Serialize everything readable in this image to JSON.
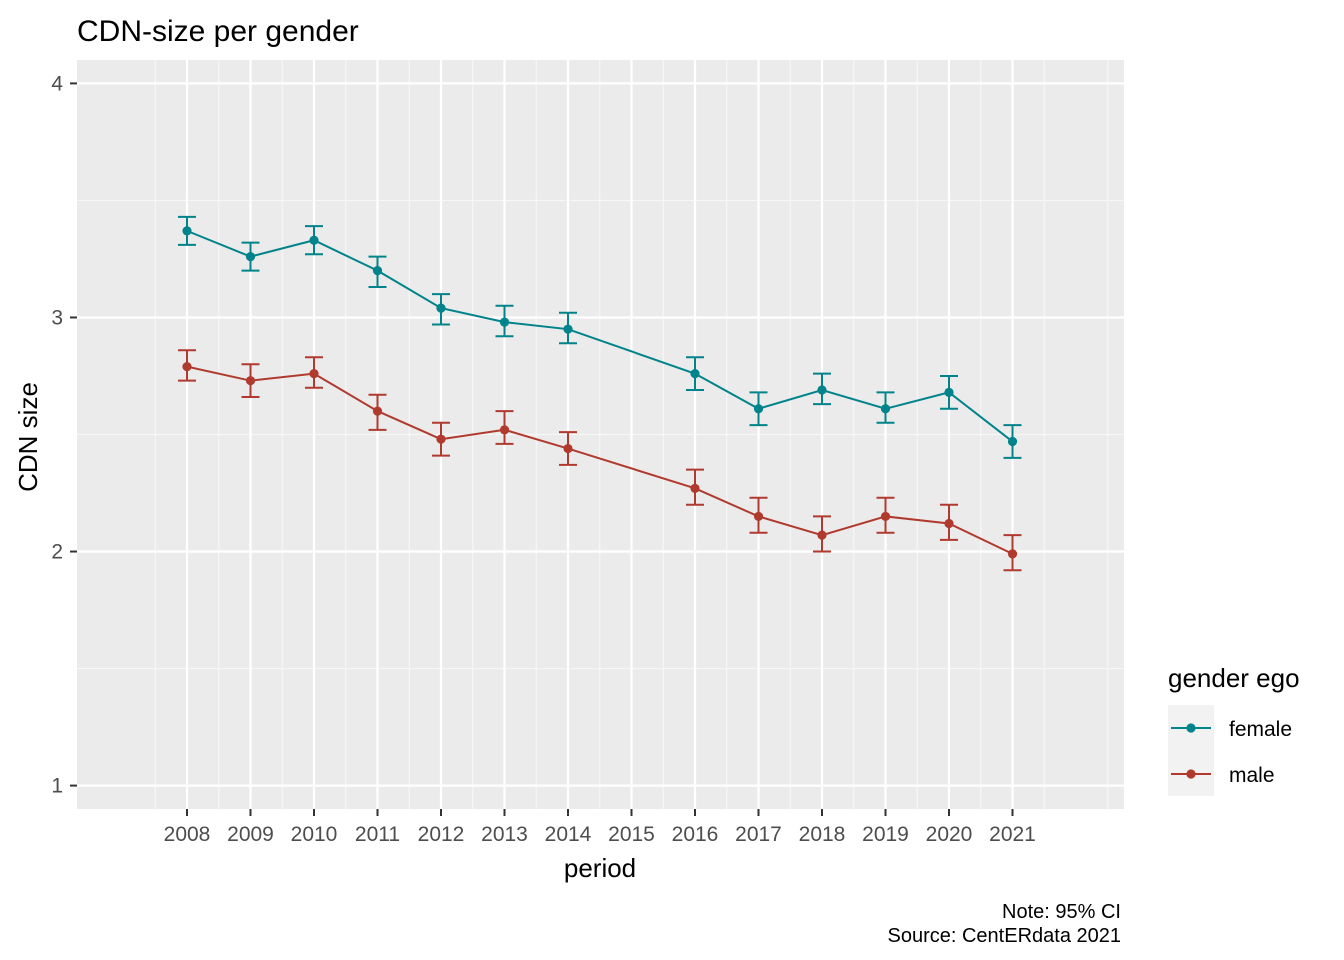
{
  "chart_data": {
    "type": "line",
    "title": "CDN-size per gender",
    "xlabel": "period",
    "ylabel": "CDN size",
    "x": [
      "2008",
      "2009",
      "2010",
      "2011",
      "2012",
      "2013",
      "2014",
      "2015",
      "2016",
      "2017",
      "2018",
      "2019",
      "2020",
      "2021"
    ],
    "ylim": [
      0.9,
      4.1
    ],
    "yticks": [
      "1",
      "2",
      "3",
      "4"
    ],
    "grid": true,
    "error_bars": "95% CI",
    "legend": {
      "title": "gender ego",
      "position": "right"
    },
    "series": [
      {
        "name": "female",
        "color": "#00838a",
        "points": [
          {
            "x": "2008",
            "y": 3.37,
            "lo": 3.31,
            "hi": 3.43
          },
          {
            "x": "2009",
            "y": 3.26,
            "lo": 3.2,
            "hi": 3.32
          },
          {
            "x": "2010",
            "y": 3.33,
            "lo": 3.27,
            "hi": 3.39
          },
          {
            "x": "2011",
            "y": 3.2,
            "lo": 3.13,
            "hi": 3.26
          },
          {
            "x": "2012",
            "y": 3.04,
            "lo": 2.97,
            "hi": 3.1
          },
          {
            "x": "2013",
            "y": 2.98,
            "lo": 2.92,
            "hi": 3.05
          },
          {
            "x": "2014",
            "y": 2.95,
            "lo": 2.89,
            "hi": 3.02
          },
          {
            "x": "2016",
            "y": 2.76,
            "lo": 2.69,
            "hi": 2.83
          },
          {
            "x": "2017",
            "y": 2.61,
            "lo": 2.54,
            "hi": 2.68
          },
          {
            "x": "2018",
            "y": 2.69,
            "lo": 2.63,
            "hi": 2.76
          },
          {
            "x": "2019",
            "y": 2.61,
            "lo": 2.55,
            "hi": 2.68
          },
          {
            "x": "2020",
            "y": 2.68,
            "lo": 2.61,
            "hi": 2.75
          },
          {
            "x": "2021",
            "y": 2.47,
            "lo": 2.4,
            "hi": 2.54
          }
        ]
      },
      {
        "name": "male",
        "color": "#b03a2e",
        "points": [
          {
            "x": "2008",
            "y": 2.79,
            "lo": 2.73,
            "hi": 2.86
          },
          {
            "x": "2009",
            "y": 2.73,
            "lo": 2.66,
            "hi": 2.8
          },
          {
            "x": "2010",
            "y": 2.76,
            "lo": 2.7,
            "hi": 2.83
          },
          {
            "x": "2011",
            "y": 2.6,
            "lo": 2.52,
            "hi": 2.67
          },
          {
            "x": "2012",
            "y": 2.48,
            "lo": 2.41,
            "hi": 2.55
          },
          {
            "x": "2013",
            "y": 2.52,
            "lo": 2.46,
            "hi": 2.6
          },
          {
            "x": "2014",
            "y": 2.44,
            "lo": 2.37,
            "hi": 2.51
          },
          {
            "x": "2016",
            "y": 2.27,
            "lo": 2.2,
            "hi": 2.35
          },
          {
            "x": "2017",
            "y": 2.15,
            "lo": 2.08,
            "hi": 2.23
          },
          {
            "x": "2018",
            "y": 2.07,
            "lo": 2.0,
            "hi": 2.15
          },
          {
            "x": "2019",
            "y": 2.15,
            "lo": 2.08,
            "hi": 2.23
          },
          {
            "x": "2020",
            "y": 2.12,
            "lo": 2.05,
            "hi": 2.2
          },
          {
            "x": "2021",
            "y": 1.99,
            "lo": 1.92,
            "hi": 2.07
          }
        ]
      }
    ],
    "caption": [
      "Note: 95% CI",
      "Source: CentERdata 2021"
    ]
  }
}
